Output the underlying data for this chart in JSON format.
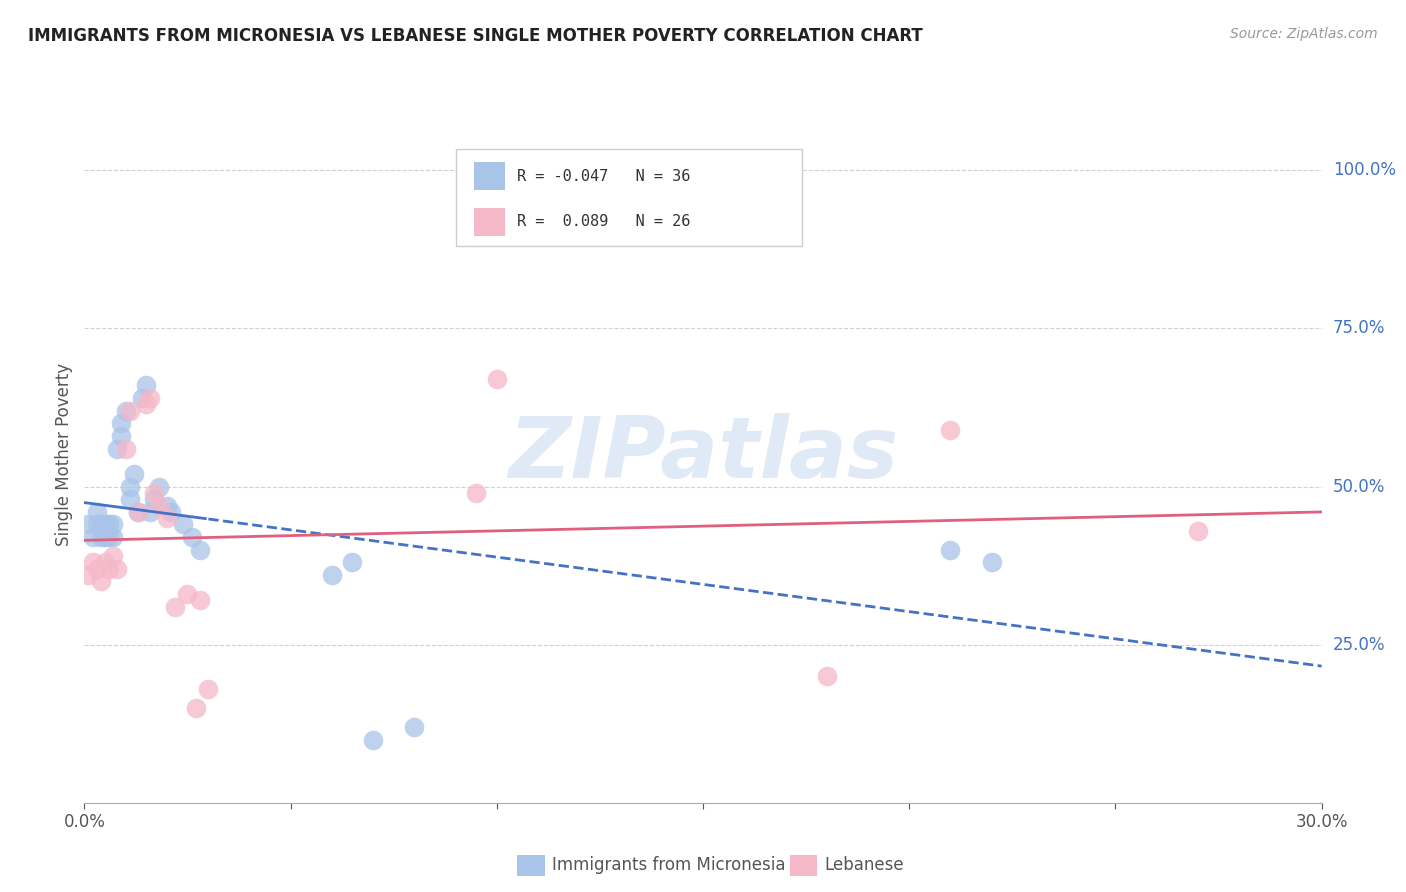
{
  "title": "IMMIGRANTS FROM MICRONESIA VS LEBANESE SINGLE MOTHER POVERTY CORRELATION CHART",
  "source": "Source: ZipAtlas.com",
  "ylabel": "Single Mother Poverty",
  "ylabel_right_ticks": [
    "100.0%",
    "75.0%",
    "50.0%",
    "25.0%"
  ],
  "ylabel_right_vals": [
    1.0,
    0.75,
    0.5,
    0.25
  ],
  "xlim": [
    0.0,
    0.3
  ],
  "ylim": [
    0.0,
    1.1
  ],
  "micronesia_R": -0.047,
  "micronesia_N": 36,
  "lebanese_R": 0.089,
  "lebanese_N": 26,
  "micronesia_color": "#a8c4e8",
  "lebanese_color": "#f5b8c8",
  "micronesia_line_color": "#4472c4",
  "lebanese_line_color": "#e06080",
  "watermark": "ZIPatlas",
  "micronesia_x": [
    0.001,
    0.002,
    0.003,
    0.003,
    0.004,
    0.004,
    0.005,
    0.005,
    0.006,
    0.006,
    0.007,
    0.007,
    0.008,
    0.009,
    0.009,
    0.01,
    0.011,
    0.011,
    0.012,
    0.013,
    0.014,
    0.015,
    0.016,
    0.017,
    0.018,
    0.02,
    0.021,
    0.024,
    0.026,
    0.028,
    0.06,
    0.065,
    0.07,
    0.08,
    0.21,
    0.22
  ],
  "micronesia_y": [
    0.44,
    0.42,
    0.44,
    0.46,
    0.42,
    0.44,
    0.42,
    0.44,
    0.42,
    0.44,
    0.42,
    0.44,
    0.56,
    0.58,
    0.6,
    0.62,
    0.48,
    0.5,
    0.52,
    0.46,
    0.64,
    0.66,
    0.46,
    0.48,
    0.5,
    0.47,
    0.46,
    0.44,
    0.42,
    0.4,
    0.36,
    0.38,
    0.1,
    0.12,
    0.4,
    0.38
  ],
  "lebanese_x": [
    0.001,
    0.002,
    0.003,
    0.004,
    0.005,
    0.006,
    0.007,
    0.008,
    0.01,
    0.011,
    0.013,
    0.015,
    0.016,
    0.017,
    0.018,
    0.02,
    0.022,
    0.025,
    0.027,
    0.028,
    0.03,
    0.095,
    0.1,
    0.18,
    0.21,
    0.27
  ],
  "lebanese_y": [
    0.36,
    0.38,
    0.37,
    0.35,
    0.38,
    0.37,
    0.39,
    0.37,
    0.56,
    0.62,
    0.46,
    0.63,
    0.64,
    0.49,
    0.47,
    0.45,
    0.31,
    0.33,
    0.15,
    0.32,
    0.18,
    0.49,
    0.67,
    0.2,
    0.59,
    0.43
  ],
  "micronesia_label": "Immigrants from Micronesia",
  "lebanese_label": "Lebanese",
  "background_color": "#ffffff",
  "grid_color": "#cccccc",
  "legend_R_color": "#4472c4",
  "legend_N_color": "#4472c4"
}
